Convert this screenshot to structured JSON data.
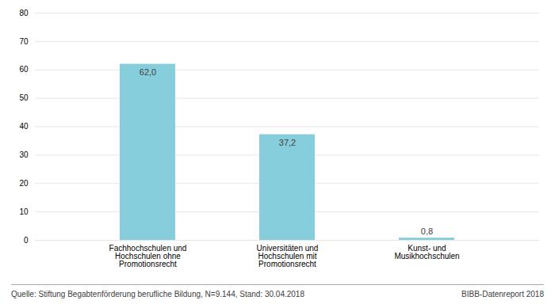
{
  "chart_data": {
    "type": "bar",
    "categories": [
      "Fachhochschulen und\nHochschulen ohne\nPromotionsrecht",
      "Universitäten und\nHochschulen mit\nPromotionsrecht",
      "Kunst- und\nMusikhochschulen"
    ],
    "values": [
      62.0,
      37.2,
      0.8
    ],
    "value_labels": [
      "62,0",
      "37,2",
      "0,8"
    ],
    "data_labels": true,
    "color": "#87cedc",
    "ylim": [
      0,
      80
    ],
    "yticks": [
      0,
      10,
      20,
      30,
      40,
      50,
      60,
      70,
      80
    ],
    "grid": true,
    "annotations": [
      "Quelle: Stiftung Begabtenförderung berufliche Bildung, N=9.144, Stand: 30.04.2018",
      "BIBB-Datenreport 2018"
    ]
  }
}
